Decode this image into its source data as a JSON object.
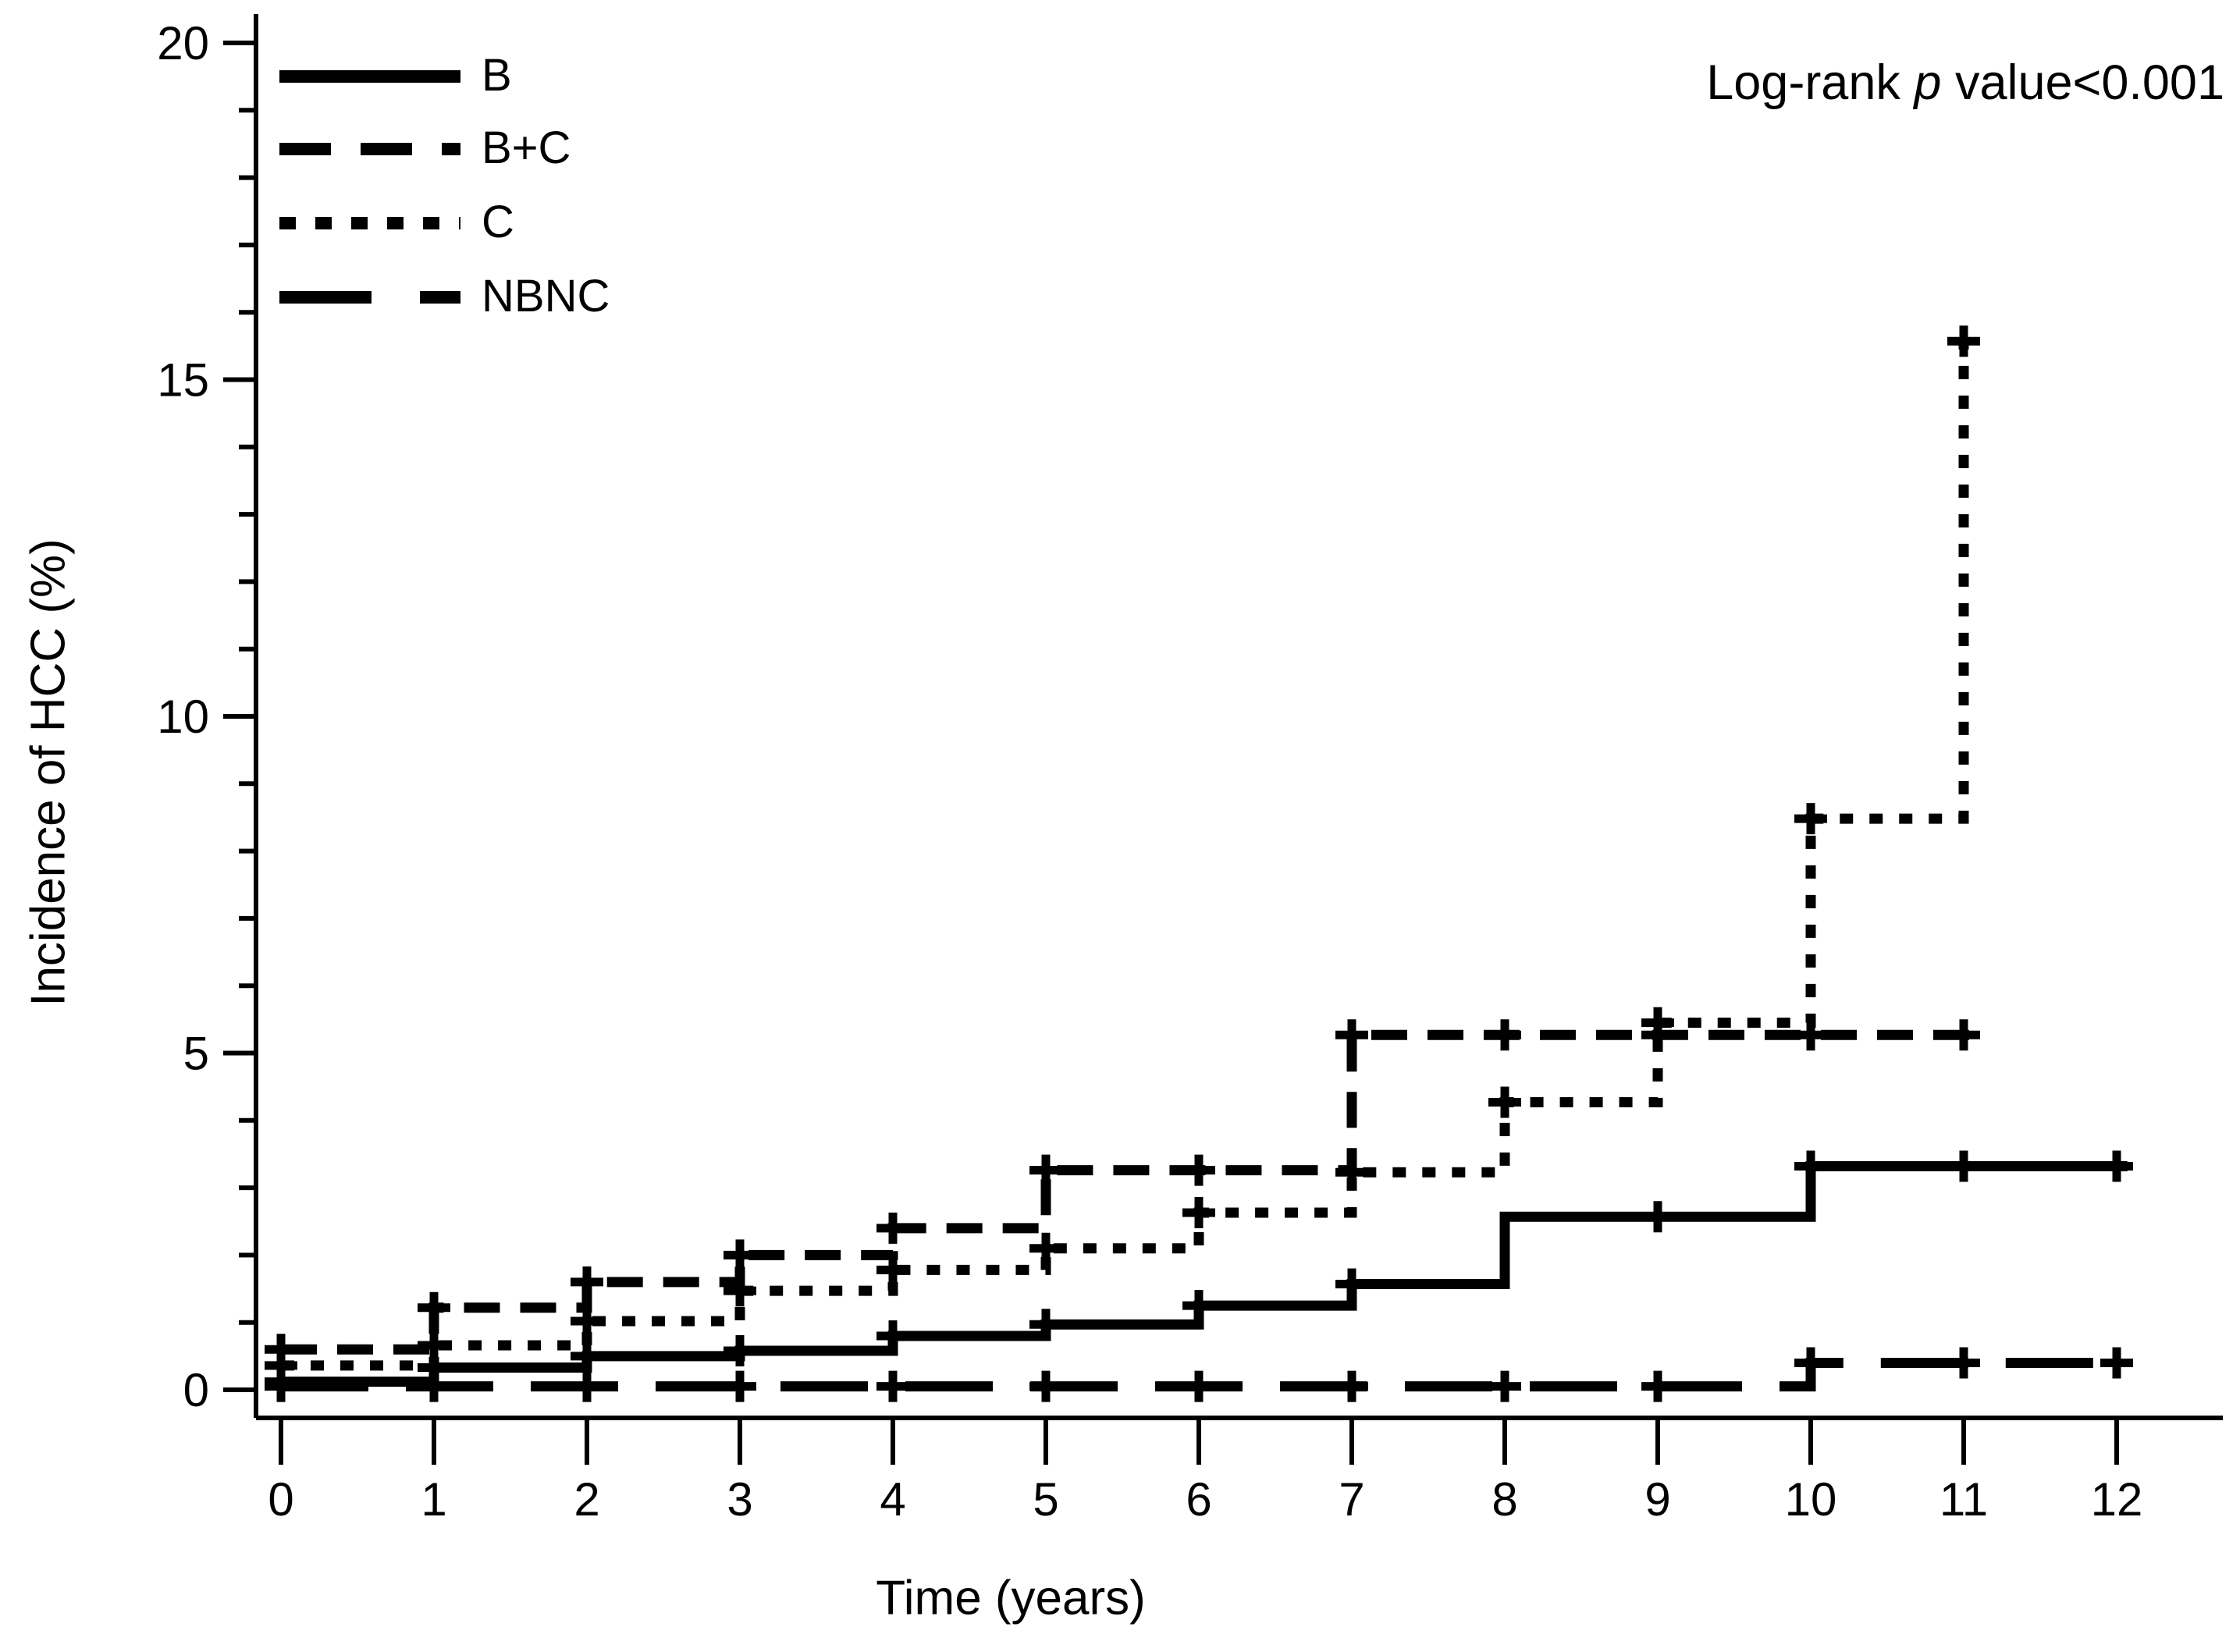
{
  "figure": {
    "annotation": {
      "prefix": "Log-rank ",
      "italic": "p",
      "suffix": " value<0.001"
    },
    "x_title": "Time (years)",
    "y_title": "Incidence of HCC (%)"
  },
  "chart_data": {
    "type": "line",
    "subtype": "kaplan-meier-cumulative-incidence-steps",
    "title": "",
    "annotation": "Log-rank p value<0.001",
    "xlabel": "Time (years)",
    "ylabel": "Incidence of HCC (%)",
    "xlim": [
      0,
      12.3
    ],
    "ylim": [
      0,
      20
    ],
    "xticks": [
      0,
      1,
      2,
      3,
      4,
      5,
      6,
      7,
      8,
      9,
      10,
      11,
      12
    ],
    "yticks": [
      0,
      5,
      10,
      15,
      20
    ],
    "y_minor_tick_step": 1,
    "grid": false,
    "legend_position": "top-left",
    "line_color": "#000000",
    "series": [
      {
        "name": "B",
        "style": "solid",
        "steps": [
          [
            0,
            0.12
          ],
          [
            1,
            0.33
          ],
          [
            2,
            0.5
          ],
          [
            3,
            0.58
          ],
          [
            4,
            0.8
          ],
          [
            5,
            0.97
          ],
          [
            6,
            1.25
          ],
          [
            7,
            1.57
          ],
          [
            8,
            2.57
          ],
          [
            10,
            3.32
          ]
        ],
        "end": 12.07,
        "censors": [
          [
            0,
            0.12
          ],
          [
            1,
            0.33
          ],
          [
            2,
            0.5
          ],
          [
            3,
            0.58
          ],
          [
            4,
            0.8
          ],
          [
            5,
            0.97
          ],
          [
            6,
            1.25
          ],
          [
            7,
            1.57
          ],
          [
            9,
            2.57
          ],
          [
            10,
            3.32
          ],
          [
            11,
            3.32
          ],
          [
            12,
            3.32
          ]
        ]
      },
      {
        "name": "B+C",
        "style": "dashed",
        "steps": [
          [
            0,
            0.6
          ],
          [
            1,
            1.22
          ],
          [
            2,
            1.6
          ],
          [
            3,
            2.0
          ],
          [
            4,
            2.4
          ],
          [
            5,
            3.26
          ],
          [
            7,
            5.27
          ]
        ],
        "end": 11.12,
        "censors": [
          [
            0,
            0.6
          ],
          [
            1,
            1.22
          ],
          [
            2,
            1.6
          ],
          [
            3,
            2.0
          ],
          [
            4,
            2.4
          ],
          [
            5,
            3.26
          ],
          [
            6,
            3.26
          ],
          [
            7,
            5.27
          ],
          [
            8,
            5.27
          ],
          [
            9,
            5.27
          ],
          [
            10,
            5.27
          ],
          [
            11,
            5.27
          ]
        ]
      },
      {
        "name": "C",
        "style": "dotted",
        "steps": [
          [
            0,
            0.36
          ],
          [
            1,
            0.66
          ],
          [
            2,
            1.02
          ],
          [
            3,
            1.47
          ],
          [
            4,
            1.78
          ],
          [
            5,
            2.1
          ],
          [
            6,
            2.63
          ],
          [
            7,
            3.23
          ],
          [
            8,
            4.27
          ],
          [
            9,
            5.45
          ],
          [
            10,
            8.48
          ],
          [
            11,
            15.57
          ]
        ],
        "end": 11.0,
        "censors": [
          [
            0,
            0.36
          ],
          [
            1,
            0.66
          ],
          [
            2,
            1.02
          ],
          [
            3,
            1.47
          ],
          [
            4,
            1.78
          ],
          [
            5,
            2.1
          ],
          [
            6,
            2.63
          ],
          [
            7,
            3.23
          ],
          [
            8,
            4.27
          ],
          [
            9,
            5.45
          ],
          [
            10,
            8.48
          ],
          [
            11,
            15.57
          ]
        ]
      },
      {
        "name": "NBNC",
        "style": "longdash",
        "steps": [
          [
            0,
            0.05
          ],
          [
            10,
            0.4
          ]
        ],
        "end": 12.07,
        "censors": [
          [
            0,
            0.05
          ],
          [
            1,
            0.05
          ],
          [
            2,
            0.05
          ],
          [
            3,
            0.05
          ],
          [
            4,
            0.05
          ],
          [
            5,
            0.05
          ],
          [
            6,
            0.05
          ],
          [
            7,
            0.05
          ],
          [
            8,
            0.05
          ],
          [
            9,
            0.05
          ],
          [
            10,
            0.4
          ],
          [
            11,
            0.4
          ],
          [
            12,
            0.4
          ]
        ]
      }
    ]
  }
}
